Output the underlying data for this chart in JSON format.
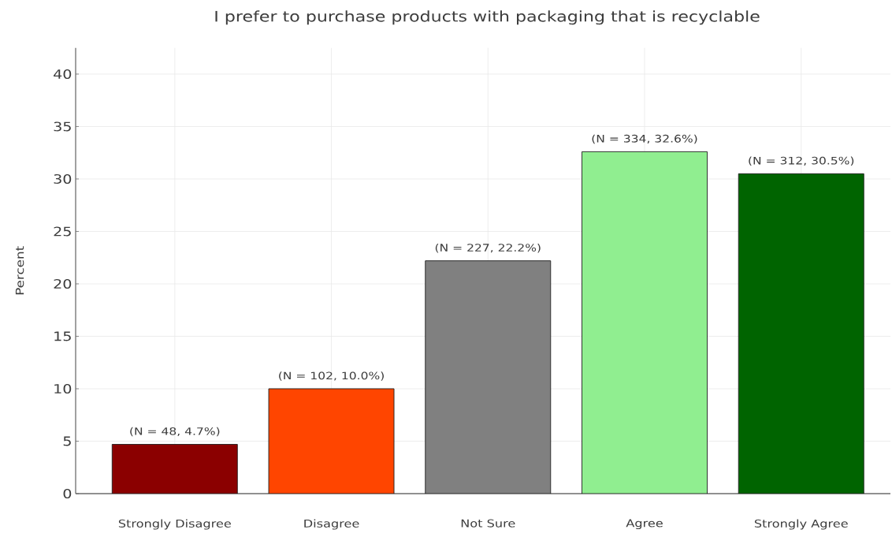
{
  "chart_data": {
    "type": "bar",
    "title": "I prefer to purchase products with packaging that is recyclable",
    "ylabel": "Percent",
    "categories": [
      "Strongly Disagree",
      "Disagree",
      "Not Sure",
      "Agree",
      "Strongly Agree"
    ],
    "values": [
      4.7,
      10.0,
      22.2,
      32.6,
      30.5
    ],
    "colors": [
      "#8b0000",
      "#ff4500",
      "#808080",
      "#90ee90",
      "#006400"
    ],
    "value_labels": [
      "(N = 48, 4.7%)",
      "(N = 102, 10.0%)",
      "(N = 227, 22.2%)",
      "(N = 334, 32.6%)",
      "(N = 312, 30.5%)"
    ],
    "ylim": [
      0,
      42.5
    ],
    "yticks": [
      0,
      5,
      10,
      15,
      20,
      25,
      30,
      35,
      40
    ],
    "grid": true
  }
}
